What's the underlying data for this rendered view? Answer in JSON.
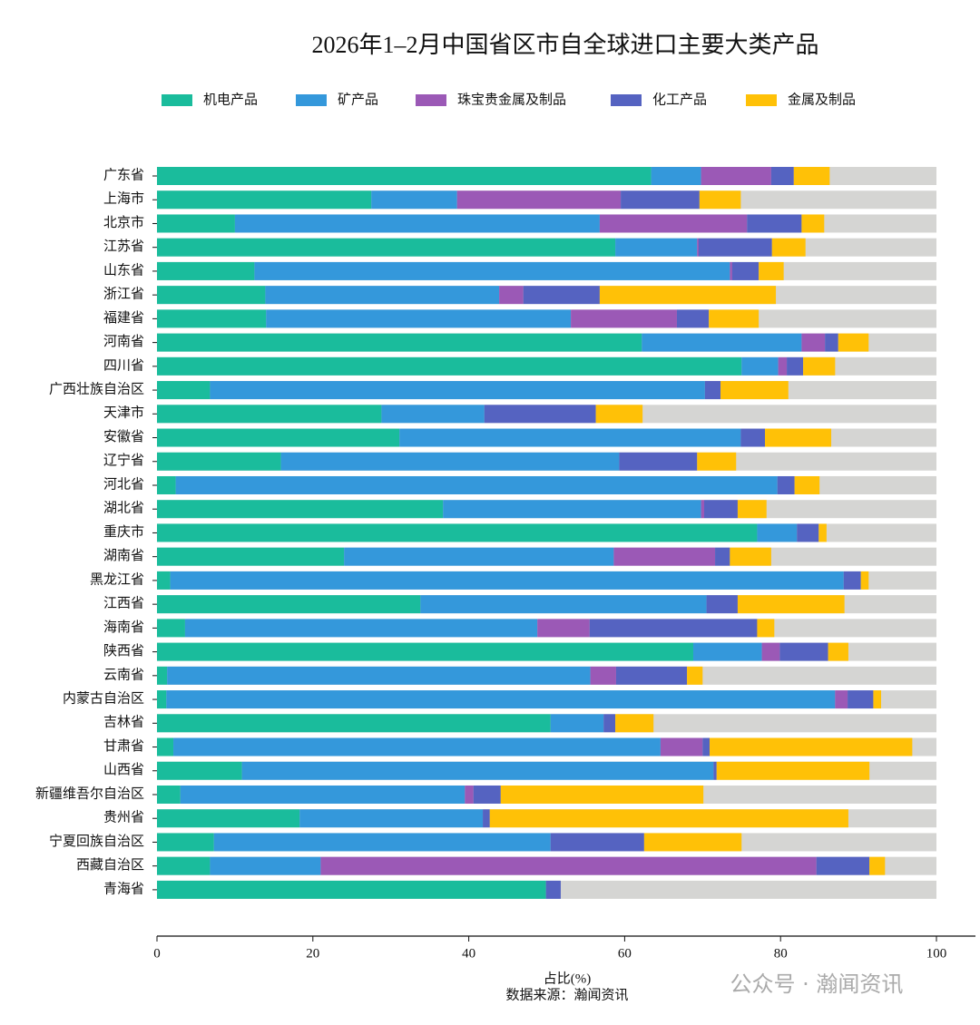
{
  "chart_data": {
    "type": "stacked-barh",
    "title": "2026年1–2月中国省区市自全球进口主要大类产品",
    "xlabel": "占比(%)",
    "source": "数据来源：瀚闻资讯",
    "watermark": "公众号 · 瀚闻资讯",
    "background_color": "#d5d5d3",
    "categories": [
      "广东省",
      "上海市",
      "北京市",
      "江苏省",
      "山东省",
      "浙江省",
      "福建省",
      "河南省",
      "四川省",
      "广西壮族自治区",
      "天津市",
      "安徽省",
      "辽宁省",
      "河北省",
      "湖北省",
      "重庆市",
      "湖南省",
      "黑龙江省",
      "江西省",
      "海南省",
      "陕西省",
      "云南省",
      "内蒙古自治区",
      "吉林省",
      "甘肃省",
      "山西省",
      "新疆维吾尔自治区",
      "贵州省",
      "宁夏回族自治区",
      "西藏自治区",
      "青海省"
    ],
    "series": [
      {
        "name": "机电产品",
        "color": "#1abc9c",
        "values": [
          63.4,
          27.5,
          10.0,
          58.8,
          12.5,
          13.9,
          14.0,
          62.2,
          75.0,
          6.8,
          28.8,
          31.1,
          15.9,
          2.4,
          36.7,
          77.0,
          24.0,
          1.7,
          33.8,
          3.6,
          68.8,
          1.3,
          1.2,
          50.5,
          2.1,
          10.9,
          3.0,
          18.3,
          7.3,
          6.8,
          49.9
        ]
      },
      {
        "name": "矿产品",
        "color": "#3498db",
        "values": [
          6.4,
          11.0,
          46.8,
          10.5,
          61.0,
          30.0,
          39.1,
          20.5,
          4.7,
          63.5,
          13.2,
          43.8,
          43.4,
          77.2,
          33.1,
          5.1,
          34.6,
          86.4,
          36.7,
          45.2,
          8.8,
          54.3,
          85.8,
          6.8,
          62.5,
          60.5,
          36.5,
          23.5,
          43.2,
          14.2,
          0
        ]
      },
      {
        "name": "珠宝贵金属及制品",
        "color": "#9b59b6",
        "values": [
          9.0,
          21.0,
          18.9,
          0.2,
          0.3,
          3.1,
          13.6,
          3.0,
          1.1,
          0,
          0,
          0,
          0,
          0,
          0.4,
          0,
          13.0,
          0,
          0,
          6.7,
          2.3,
          3.3,
          1.6,
          0,
          5.4,
          0,
          1.1,
          0,
          0,
          63.6,
          0
        ]
      },
      {
        "name": "化工产品",
        "color": "#5563c1",
        "values": [
          2.9,
          10.1,
          7.0,
          9.4,
          3.4,
          9.8,
          4.1,
          1.7,
          2.1,
          2.0,
          14.3,
          3.1,
          10.0,
          2.2,
          4.3,
          2.8,
          1.9,
          2.2,
          4.0,
          21.5,
          6.2,
          9.1,
          3.3,
          1.5,
          0.9,
          0.4,
          3.5,
          0.9,
          12.0,
          6.8,
          1.9
        ]
      },
      {
        "name": "金属及制品",
        "color": "#ffc107",
        "values": [
          4.6,
          5.3,
          2.9,
          4.3,
          3.2,
          22.6,
          6.4,
          3.9,
          4.1,
          8.7,
          6.0,
          8.5,
          5.0,
          3.2,
          3.7,
          1.0,
          5.3,
          1.0,
          13.7,
          2.2,
          2.6,
          2.0,
          1.0,
          4.9,
          26.0,
          19.6,
          26.0,
          46.0,
          12.5,
          2.0,
          0
        ]
      }
    ],
    "xlim": [
      0,
      100
    ],
    "xticks": [
      0,
      20,
      40,
      60,
      80,
      100
    ]
  }
}
